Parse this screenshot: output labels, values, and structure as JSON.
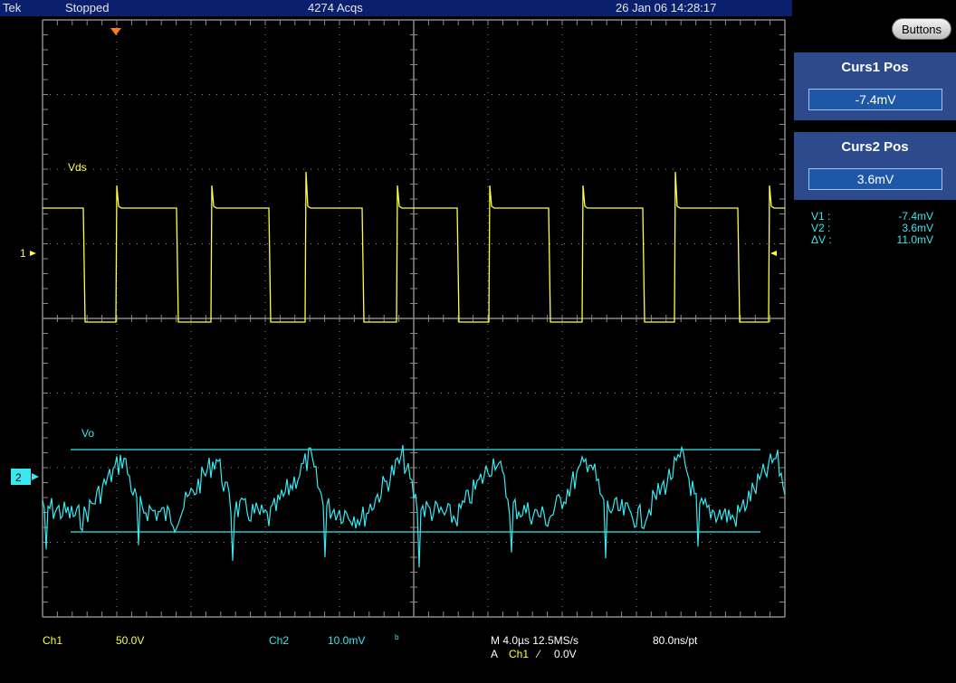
{
  "status_bar": {
    "brand": "Tek",
    "state": "Stopped",
    "acquisitions": "4274 Acqs",
    "datetime": "26 Jan 06 14:28:17"
  },
  "side_panel": {
    "buttons_label": "Buttons",
    "curs1": {
      "title": "Curs1 Pos",
      "value": "-7.4mV"
    },
    "curs2": {
      "title": "Curs2 Pos",
      "value": "3.6mV"
    },
    "readout": [
      {
        "key": "V1 :",
        "value": "-7.4mV"
      },
      {
        "key": "V2 :",
        "value": "3.6mV"
      },
      {
        "key": "ΔV :",
        "value": "11.0mV"
      }
    ]
  },
  "waveforms": {
    "ch1": {
      "label": "Vds",
      "marker": "1",
      "color": "#ffff40"
    },
    "ch2": {
      "label": "Vo",
      "marker": "2",
      "color": "#38e8f0"
    }
  },
  "bottom_bar": {
    "ch1_name": "Ch1",
    "ch1_scale": "50.0V",
    "ch2_name": "Ch2",
    "ch2_scale": "10.0mV",
    "ch2_bw_symbol": "ᵇ",
    "timebase": "M 4.0µs 12.5MS/s",
    "resolution": "80.0ns/pt",
    "trigger_prefix": "A",
    "trigger_source": "Ch1",
    "trigger_slope": "⁄",
    "trigger_level": "0.0V"
  },
  "colors": {
    "grid": "#8a8a8a",
    "panel": "#2c4a8c",
    "topbar": "#0a1f6e"
  }
}
